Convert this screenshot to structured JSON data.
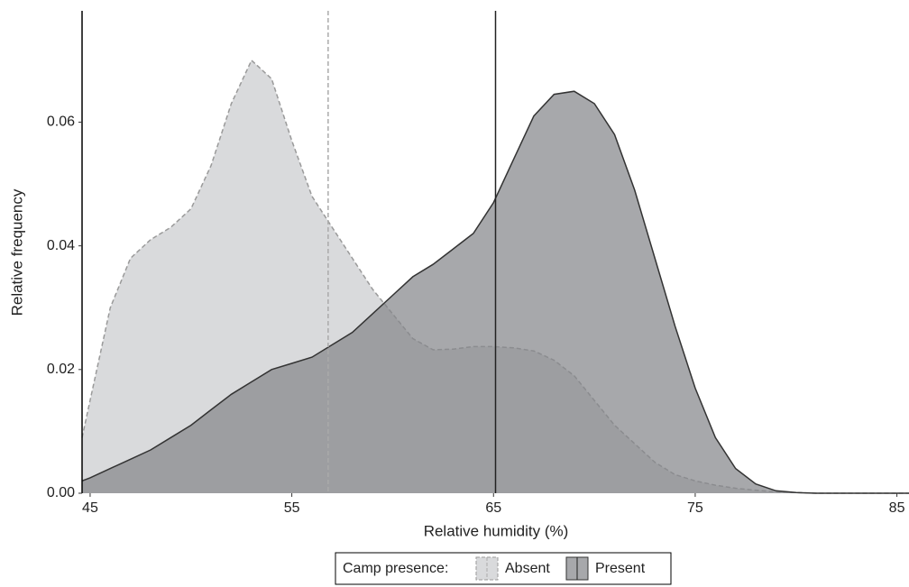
{
  "chart_data": {
    "type": "density",
    "x_label": "Relative humidity (%)",
    "y_label": "Relative frequency",
    "legend_title": "Camp presence:",
    "x": [
      44.6,
      45,
      46,
      47,
      48,
      49,
      50,
      51,
      52,
      53,
      54,
      55,
      56,
      57,
      58,
      59,
      60,
      61,
      62,
      63,
      64,
      65,
      66,
      67,
      68,
      69,
      70,
      71,
      72,
      73,
      74,
      75,
      76,
      77,
      78,
      79,
      80,
      81,
      85.6
    ],
    "series": [
      {
        "name": "Absent",
        "color": "#d9dadc",
        "line_color": "#9a9a9a",
        "dashed": true,
        "mean": 56.8,
        "values": [
          0.009,
          0.015,
          0.03,
          0.038,
          0.041,
          0.043,
          0.046,
          0.053,
          0.063,
          0.07,
          0.067,
          0.057,
          0.048,
          0.043,
          0.038,
          0.033,
          0.029,
          0.025,
          0.0232,
          0.0233,
          0.0237,
          0.0237,
          0.0235,
          0.023,
          0.0215,
          0.019,
          0.015,
          0.011,
          0.008,
          0.005,
          0.003,
          0.002,
          0.0013,
          0.0008,
          0.0005,
          0.0002,
          0.0001,
          0,
          0
        ]
      },
      {
        "name": "Present",
        "color": "#85868b",
        "line_color": "#333333",
        "dashed": false,
        "mean": 65.1,
        "values": [
          0.002,
          0.0025,
          0.004,
          0.0055,
          0.007,
          0.009,
          0.011,
          0.0135,
          0.016,
          0.018,
          0.02,
          0.021,
          0.022,
          0.024,
          0.026,
          0.029,
          0.032,
          0.035,
          0.037,
          0.0395,
          0.042,
          0.047,
          0.054,
          0.061,
          0.0645,
          0.065,
          0.063,
          0.058,
          0.049,
          0.038,
          0.027,
          0.017,
          0.009,
          0.004,
          0.0015,
          0.0004,
          0.0001,
          0,
          0
        ]
      }
    ],
    "xlim": [
      44.6,
      85.6
    ],
    "ylim": [
      0,
      0.078
    ],
    "xticks": [
      45,
      55,
      65,
      75,
      85
    ],
    "yticks": [
      {
        "value": 0,
        "label": "0.00"
      },
      0.02,
      0.04,
      0.06
    ],
    "legend": "bottom"
  }
}
